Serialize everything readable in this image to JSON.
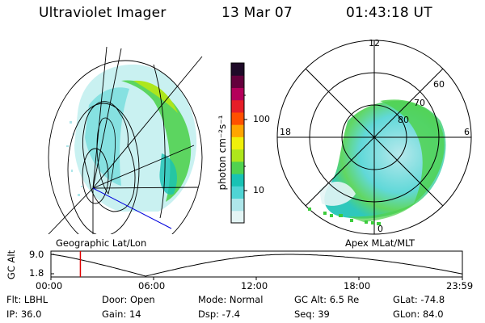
{
  "header": {
    "instrument": "Ultraviolet Imager",
    "date": "13 Mar 07",
    "time": "01:43:18 UT"
  },
  "left_panel": {
    "caption": "Geographic Lat/Lon"
  },
  "colorbar": {
    "unit_label": "photon cm⁻²s⁻¹",
    "ticks": [
      "100",
      "10"
    ],
    "scale": "log",
    "colors": [
      "#e4f5f5",
      "#aee6ea",
      "#4fd4d4",
      "#18c2b4",
      "#50d250",
      "#aee61c",
      "#f0f00a",
      "#ffa500",
      "#ff5000",
      "#e61e28",
      "#b4005a",
      "#64003c",
      "#1e0a28"
    ]
  },
  "right_panel": {
    "caption": "Apex MLat/MLT",
    "mlt_labels": [
      "12",
      "18",
      "6",
      "0"
    ],
    "mlat_labels": [
      "60",
      "70",
      "80"
    ]
  },
  "timeline": {
    "ylabel": "GC Alt",
    "yticks": [
      "9.0",
      "1.8"
    ],
    "xticks": [
      "00:00",
      "06:00",
      "12:00",
      "18:00",
      "23:59"
    ],
    "current_time_marker": "01:43",
    "marker_color": "#e00000"
  },
  "status": {
    "flt": "Flt: LBHL",
    "ip": "IP: 36.0",
    "door": "Door: Open",
    "gain": "Gain: 14",
    "mode": "Mode: Normal",
    "dsp": "Dsp:   -7.4",
    "gc_alt": "GC Alt: 6.5 Re",
    "seq": "Seq: 39",
    "glat": "GLat:  -74.8",
    "glon": "GLon:  84.0"
  }
}
